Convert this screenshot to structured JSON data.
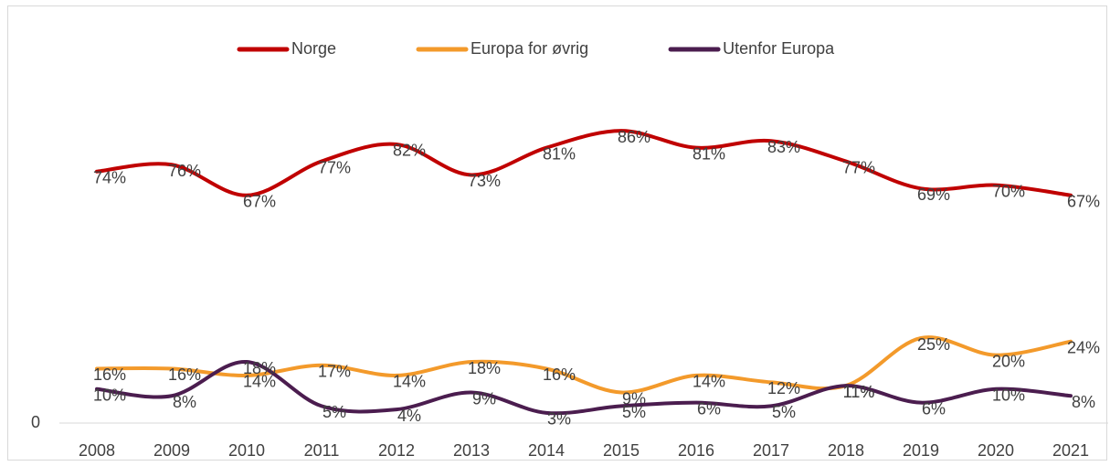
{
  "chart_data": {
    "type": "line",
    "categories": [
      "2008",
      "2009",
      "2010",
      "2011",
      "2012",
      "2013",
      "2014",
      "2015",
      "2016",
      "2017",
      "2018",
      "2019",
      "2020",
      "2021"
    ],
    "series": [
      {
        "name": "Norge",
        "color": "#c00000",
        "values": [
          74,
          76,
          67,
          77,
          82,
          73,
          81,
          86,
          81,
          83,
          77,
          69,
          70,
          67
        ],
        "value_labels": [
          "74%",
          "76%",
          "67%",
          "77%",
          "82%",
          "73%",
          "81%",
          "86%",
          "81%",
          "83%",
          "77%",
          "69%",
          "70%",
          "67%"
        ]
      },
      {
        "name": "Europa for øvrig",
        "color": "#f39a2b",
        "values": [
          16,
          16,
          14,
          17,
          14,
          18,
          16,
          9,
          14,
          12,
          11,
          25,
          20,
          24
        ],
        "value_labels": [
          "16%",
          "16%",
          "14%",
          "17%",
          "14%",
          "18%",
          "16%",
          "9%",
          "14%",
          "12%",
          "11%",
          "25%",
          "20%",
          "24%"
        ]
      },
      {
        "name": "Utenfor Europa",
        "color": "#4b1d4f",
        "values": [
          10,
          8,
          18,
          5,
          4,
          9,
          3,
          5,
          6,
          5,
          11,
          6,
          10,
          8
        ],
        "value_labels": [
          "10%",
          "8%",
          "18%",
          "5%",
          "4%",
          "9%",
          "3%",
          "5%",
          "6%",
          "5%",
          "11%",
          "6%",
          "10%",
          "8%"
        ]
      }
    ],
    "ylim": [
      0,
      100
    ],
    "yticks": [
      0
    ],
    "grid": false,
    "smooth": true,
    "legend": "top"
  }
}
